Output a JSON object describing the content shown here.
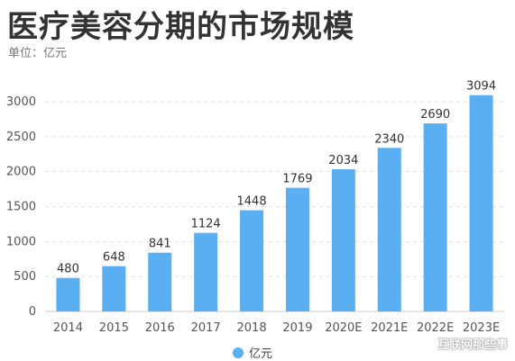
{
  "title": "医疗美容分期的市场规模",
  "subtitle": "单位：亿元",
  "watermark": "互联网那些事",
  "chart_data": {
    "type": "bar",
    "categories": [
      "2014",
      "2015",
      "2016",
      "2017",
      "2018",
      "2019",
      "2020E",
      "2021E",
      "2022E",
      "2023E"
    ],
    "series": [
      {
        "name": "亿元",
        "values": [
          480,
          648,
          841,
          1124,
          1448,
          1769,
          2034,
          2340,
          2690,
          3094
        ]
      }
    ],
    "yticks": [
      0,
      500,
      1000,
      1500,
      2000,
      2500,
      3000
    ],
    "ylim": [
      0,
      3300
    ],
    "grid": true,
    "legend_position": "bottom-center",
    "colors": {
      "bar": "#5aaef2",
      "grid": "#e0e0e0",
      "axis": "#cccccc"
    }
  }
}
